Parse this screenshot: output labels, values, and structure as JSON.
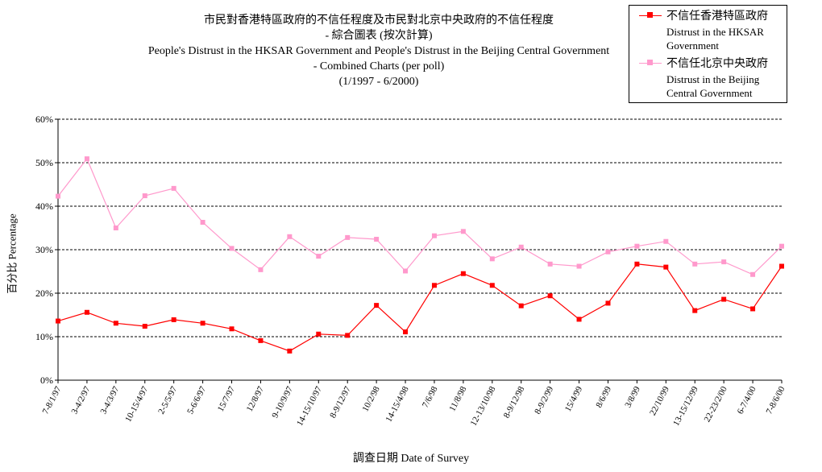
{
  "chart_data": {
    "type": "line",
    "title": {
      "line1": "市民對香港特區政府的不信任程度及市民對北京中央政府的不信任程度",
      "line2": "- 綜合圖表 (按次計算)",
      "line3": "People's Distrust in the HKSAR Government and People's Distrust in the Beijing Central Government",
      "line4": "- Combined Charts (per poll)",
      "line5": "(1/1997 - 6/2000)"
    },
    "ylabel": "百分比 Percentage",
    "xlabel": "調查日期 Date of Survey",
    "y_ticks": [
      "0%",
      "10%",
      "20%",
      "30%",
      "40%",
      "50%",
      "60%"
    ],
    "ylim": [
      0,
      60
    ],
    "grid": true,
    "legend_position": "top-right",
    "x": [
      "7-8/1/97",
      "3-4/2/97",
      "3-4/3/97",
      "10-15/4/97",
      "2-5/5/97",
      "5-6/6/97",
      "15/7/97",
      "12/8/97",
      "9-10/9/97",
      "14-15/10/97",
      "8-9/12/97",
      "10/2/98",
      "14-15/4/98",
      "7/6/98",
      "11/8/98",
      "12-13/10/98",
      "8-9/12/98",
      "8-9/2/99",
      "15/4/99",
      "8/6/99",
      "3/8/99",
      "22/10/99",
      "13-15/12/99",
      "22-23/2/00",
      "6-7/4/00",
      "7-8/6/00"
    ],
    "series": [
      {
        "name": "不信任香港特區政府 Distrust in the HKSAR Government",
        "legend_cn": "不信任香港特區政府",
        "legend_en1": "Distrust in the HKSAR",
        "legend_en2": "Government",
        "color": "#ff0000",
        "values": [
          13.6,
          15.6,
          13.1,
          12.4,
          13.9,
          13.1,
          11.8,
          9.1,
          6.7,
          10.6,
          10.3,
          17.2,
          11.1,
          21.8,
          24.5,
          21.8,
          17.1,
          19.4,
          14,
          17.7,
          26.7,
          26,
          16,
          18.6,
          16.4,
          26.2
        ]
      },
      {
        "name": "不信任北京中央政府 Distrust in the Beijing Central Government",
        "legend_cn": "不信任北京中央政府",
        "legend_en1": "Distrust in the Beijing",
        "legend_en2": "Central Government",
        "color": "#ff99cc",
        "values": [
          42.3,
          50.9,
          35,
          42.4,
          44.1,
          36.3,
          30.3,
          25.4,
          33,
          28.5,
          32.8,
          32.4,
          25.1,
          33.2,
          34.2,
          27.9,
          30.6,
          26.7,
          26.2,
          29.5,
          30.8,
          31.9,
          26.7,
          27.2,
          24.3,
          30.8
        ]
      }
    ]
  }
}
